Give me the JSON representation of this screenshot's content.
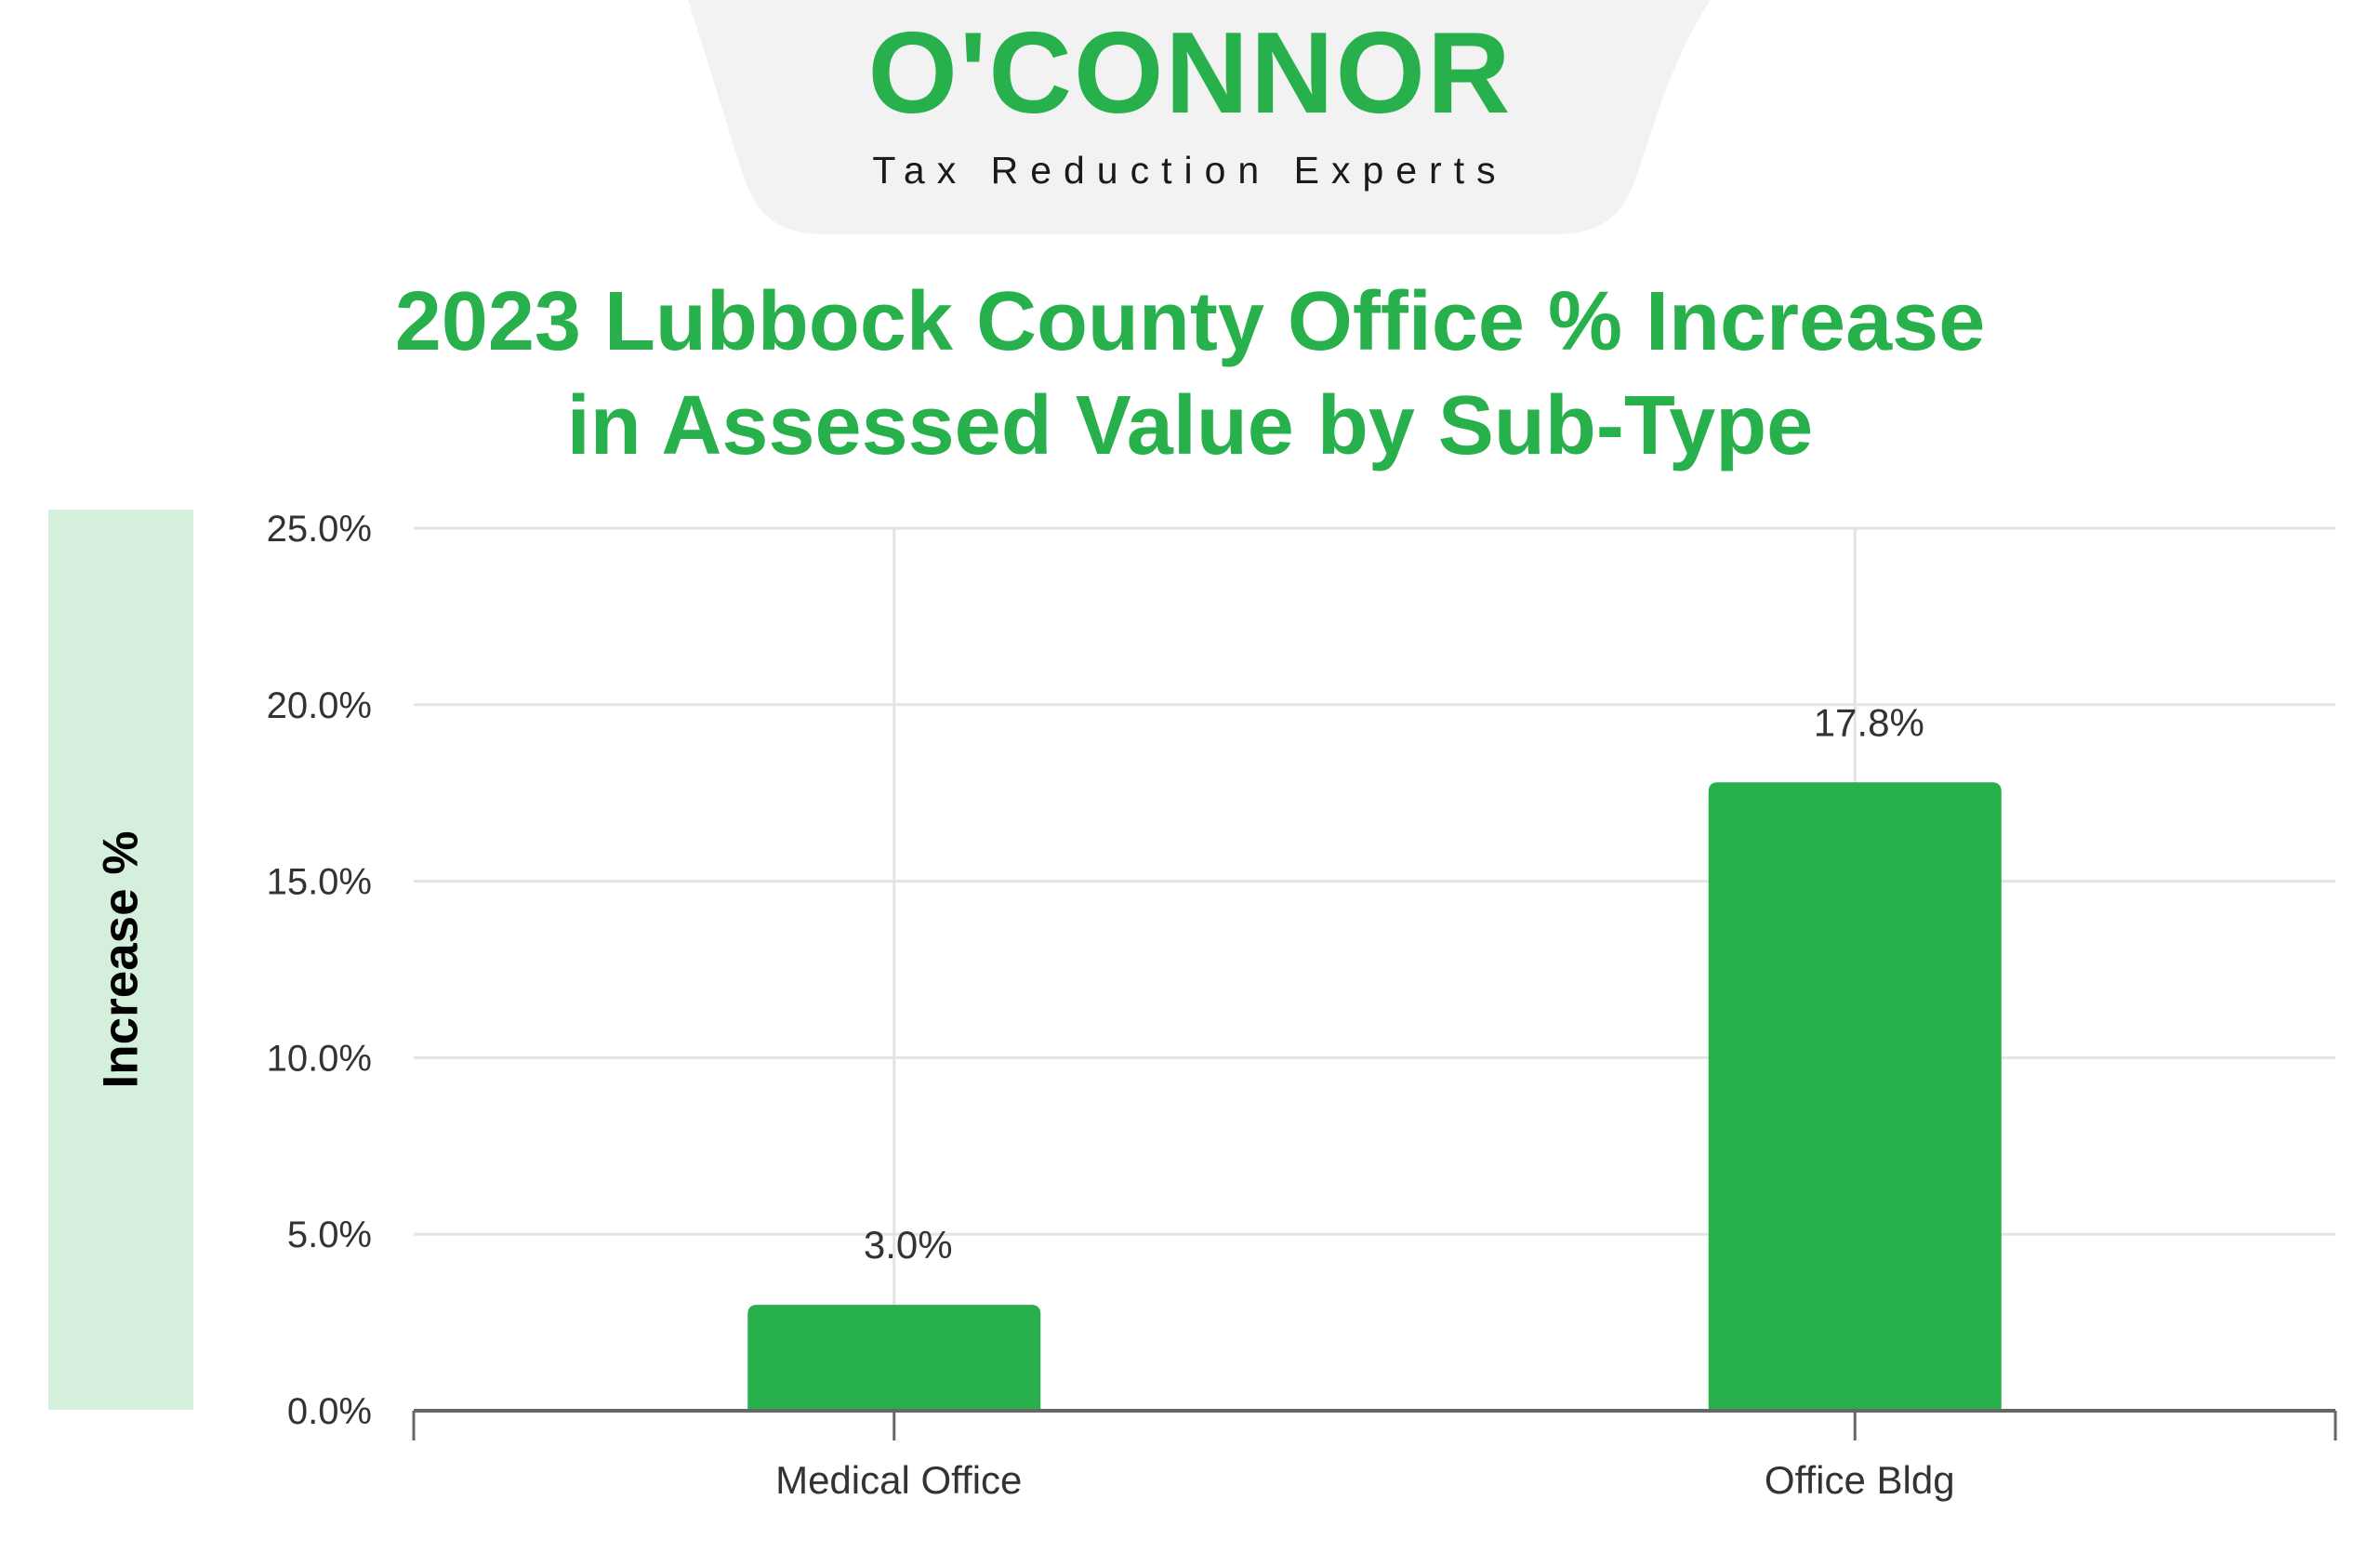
{
  "brand": {
    "name": "O'CONNOR",
    "tagline": "Tax Reduction Experts"
  },
  "colors": {
    "brand_green": "#27b04b",
    "bar": "#27b04b",
    "ylabel_band": "#d4f0dc",
    "logo_tab": "#f2f2f2"
  },
  "chart_data": {
    "type": "bar",
    "title_lines": [
      "2023 Lubbock County Office % Increase",
      "in Assessed Value by Sub-Type"
    ],
    "xlabel": "",
    "ylabel": "Increase %",
    "categories": [
      "Medical Office",
      "Office Bldg"
    ],
    "values": [
      3.0,
      17.8
    ],
    "data_labels": [
      "3.0%",
      "17.8%"
    ],
    "ylim": [
      0,
      25
    ],
    "yticks": [
      0,
      5,
      10,
      15,
      20,
      25
    ],
    "ytick_labels": [
      "0.0%",
      "5.0%",
      "10.0%",
      "15.0%",
      "20.0%",
      "25.0%"
    ],
    "grid": true,
    "legend": "none"
  }
}
